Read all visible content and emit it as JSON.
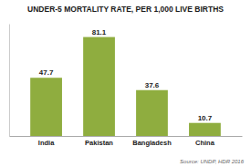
{
  "chart_data": {
    "type": "bar",
    "title": "UNDER-5 MORTALITY RATE, PER 1,000 LIVE BIRTHS",
    "categories": [
      "India",
      "Pakistan",
      "Bangladesh",
      "China"
    ],
    "values": [
      47.7,
      81.1,
      37.6,
      10.7
    ],
    "color": "#8fad3f",
    "ylim": [
      0,
      92
    ],
    "data_labels": true,
    "tick_labels": "x",
    "annotations": [
      "Source: UNDP, HDR 2016"
    ]
  }
}
